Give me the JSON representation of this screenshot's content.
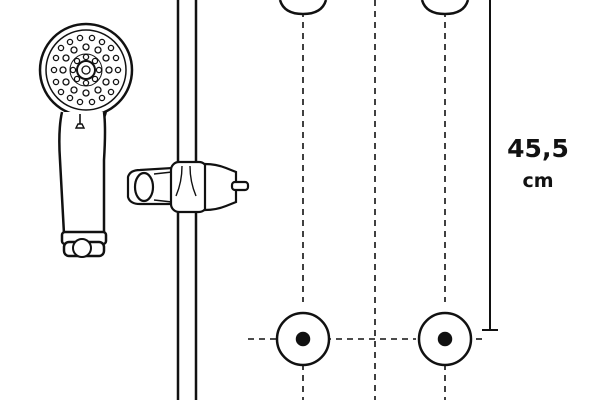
{
  "dimension": {
    "value": "45,5",
    "unit": "cm"
  },
  "colors": {
    "line": "#111111",
    "background": "#ffffff"
  }
}
